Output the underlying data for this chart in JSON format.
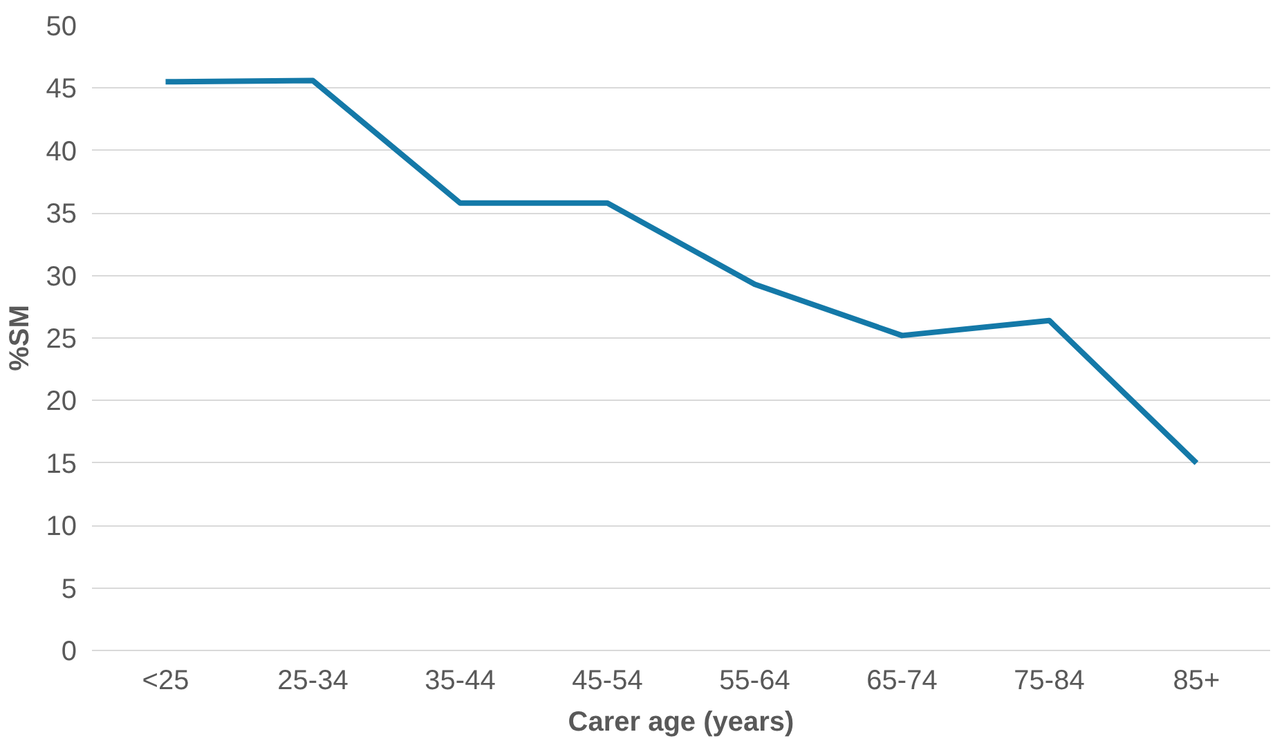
{
  "chart_data": {
    "type": "line",
    "xlabel": "Carer age (years)",
    "ylabel": "%SM",
    "categories": [
      "<25",
      "25-34",
      "35-44",
      "45-54",
      "55-64",
      "65-74",
      "75-84",
      "85+"
    ],
    "series": [
      {
        "color": "#1479a8",
        "values": [
          45.5,
          45.6,
          35.8,
          35.8,
          29.3,
          25.2,
          26.4,
          15.0
        ]
      }
    ],
    "ylim": [
      0,
      50
    ],
    "yticks": [
      0,
      5,
      10,
      15,
      20,
      25,
      30,
      35,
      40,
      45,
      50
    ],
    "grid": "y",
    "marker": "none",
    "line_style": "solid"
  }
}
